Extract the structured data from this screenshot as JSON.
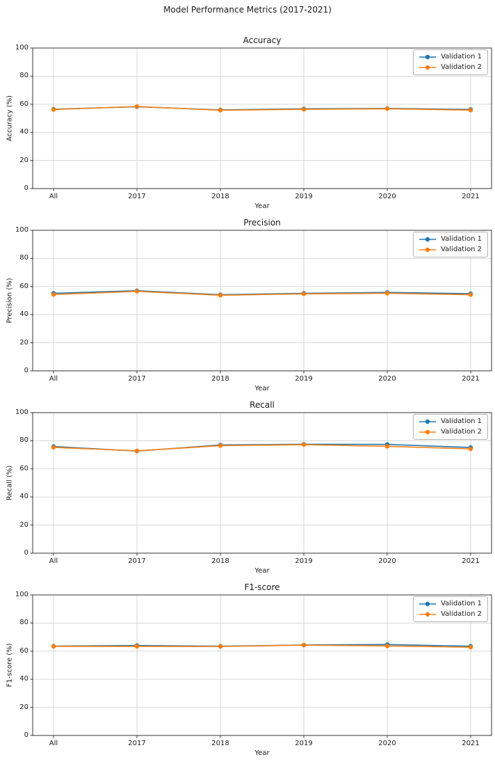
{
  "figure": {
    "title": "Model Performance Metrics (2017-2021)"
  },
  "colors": {
    "validation1": "#1f77b4",
    "validation2": "#ff7f0e",
    "grid": "#d3d3d3",
    "spine": "#333333",
    "background": "#ffffff",
    "legend_border": "#b3b3b3"
  },
  "chart_data": [
    {
      "type": "line",
      "title": "Accuracy",
      "xlabel": "Year",
      "ylabel": "Accuracy (%)",
      "categories": [
        "All",
        "2017",
        "2018",
        "2019",
        "2020",
        "2021"
      ],
      "ylim": [
        0,
        100
      ],
      "yticks": [
        0,
        20,
        40,
        60,
        80,
        100
      ],
      "grid": true,
      "legend_position": "upper right",
      "series": [
        {
          "name": "Validation 1",
          "color": "#1f77b4",
          "values": [
            56.5,
            58.2,
            56.0,
            56.8,
            57.0,
            56.3
          ]
        },
        {
          "name": "Validation 2",
          "color": "#ff7f0e",
          "values": [
            56.2,
            58.4,
            55.7,
            56.4,
            56.8,
            55.8
          ]
        }
      ]
    },
    {
      "type": "line",
      "title": "Precision",
      "xlabel": "Year",
      "ylabel": "Precision (%)",
      "categories": [
        "All",
        "2017",
        "2018",
        "2019",
        "2020",
        "2021"
      ],
      "ylim": [
        0,
        100
      ],
      "yticks": [
        0,
        20,
        40,
        60,
        80,
        100
      ],
      "grid": true,
      "legend_position": "upper right",
      "series": [
        {
          "name": "Validation 1",
          "color": "#1f77b4",
          "values": [
            55.2,
            57.0,
            54.2,
            55.2,
            55.8,
            54.9
          ]
        },
        {
          "name": "Validation 2",
          "color": "#ff7f0e",
          "values": [
            54.3,
            56.6,
            53.8,
            54.8,
            55.2,
            54.2
          ]
        }
      ]
    },
    {
      "type": "line",
      "title": "Recall",
      "xlabel": "Year",
      "ylabel": "Recall (%)",
      "categories": [
        "All",
        "2017",
        "2018",
        "2019",
        "2020",
        "2021"
      ],
      "ylim": [
        0,
        100
      ],
      "yticks": [
        0,
        20,
        40,
        60,
        80,
        100
      ],
      "grid": true,
      "legend_position": "upper right",
      "series": [
        {
          "name": "Validation 1",
          "color": "#1f77b4",
          "values": [
            75.9,
            72.6,
            77.0,
            77.5,
            77.4,
            75.2
          ]
        },
        {
          "name": "Validation 2",
          "color": "#ff7f0e",
          "values": [
            75.3,
            72.8,
            76.5,
            77.2,
            76.0,
            74.2
          ]
        }
      ]
    },
    {
      "type": "line",
      "title": "F1-score",
      "xlabel": "Year",
      "ylabel": "F1-score (%)",
      "categories": [
        "All",
        "2017",
        "2018",
        "2019",
        "2020",
        "2021"
      ],
      "ylim": [
        0,
        100
      ],
      "yticks": [
        0,
        20,
        40,
        60,
        80,
        100
      ],
      "grid": true,
      "legend_position": "upper right",
      "series": [
        {
          "name": "Validation 1",
          "color": "#1f77b4",
          "values": [
            63.6,
            64.0,
            63.5,
            64.4,
            64.7,
            63.5
          ]
        },
        {
          "name": "Validation 2",
          "color": "#ff7f0e",
          "values": [
            63.4,
            63.4,
            63.3,
            64.3,
            63.7,
            62.8
          ]
        }
      ]
    }
  ]
}
